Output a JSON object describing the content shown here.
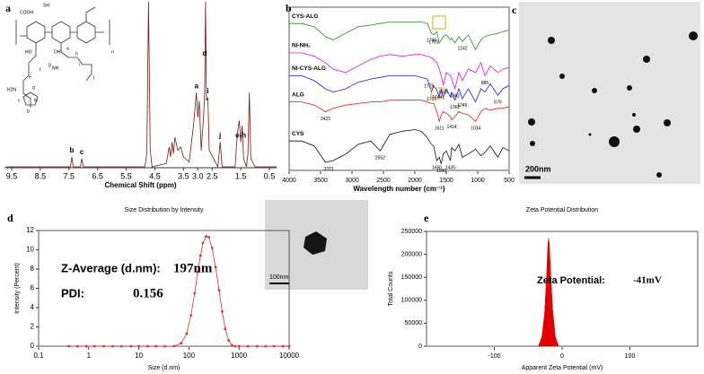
{
  "panel_labels": [
    "a",
    "b",
    "c",
    "d",
    "e"
  ],
  "tem_image": {
    "scale_label": "200nm"
  },
  "inset_image": {
    "scale_label": "100nm"
  },
  "chart_data": [
    {
      "type": "line",
      "x_label": "Chemical Shift (ppm)",
      "color": "#7a1414",
      "x": [
        9.7,
        7.45,
        7.4,
        7.35,
        7.1,
        7.05,
        7.0,
        4.85,
        4.78,
        4.72,
        4.66,
        4.6,
        4.1,
        4.0,
        3.95,
        3.9,
        3.85,
        3.8,
        3.7,
        3.6,
        3.5,
        3.3,
        3.15,
        3.1,
        3.05,
        3.0,
        2.95,
        2.88,
        2.8,
        2.76,
        2.73,
        2.7,
        2.65,
        2.6,
        2.3,
        2.22,
        2.15,
        1.7,
        1.62,
        1.55,
        1.5,
        1.45,
        1.4,
        1.3,
        1.25,
        1.2,
        1.15,
        1.0,
        0.25
      ],
      "values": [
        0,
        0,
        6,
        0,
        0,
        5,
        0,
        0,
        8,
        100,
        10,
        0,
        2,
        12,
        6,
        15,
        8,
        18,
        10,
        12,
        6,
        3,
        25,
        35,
        45,
        30,
        40,
        10,
        30,
        45,
        100,
        40,
        42,
        10,
        0,
        15,
        0,
        0,
        20,
        28,
        15,
        25,
        5,
        0,
        8,
        45,
        5,
        0,
        0
      ],
      "xlim": [
        9.75,
        0.25
      ],
      "ylim": [
        0,
        100
      ],
      "xticks": [
        9.5,
        8.5,
        7.5,
        6.5,
        5.5,
        4.5,
        3.5,
        {
          "value": 3,
          "label": "3.0"
        },
        2.5,
        1.5,
        0.5
      ],
      "annotations": [
        {
          "text": "b",
          "x": 7.4
        },
        {
          "text": "c",
          "x": 7.05
        },
        {
          "text": "a",
          "x": 3.05
        },
        {
          "text": "d",
          "x": 2.76
        },
        {
          "text": "i",
          "x": 2.65
        },
        {
          "text": "j",
          "x": 2.22
        },
        {
          "text": "e-h",
          "x": 1.5
        }
      ],
      "structure_labels": [
        "COOH",
        "OH",
        "HO",
        "NH",
        "SH",
        "n",
        "H2N",
        "N",
        "a",
        "b",
        "c",
        "d",
        "e",
        "f",
        "g",
        "h",
        "i",
        "j"
      ]
    },
    {
      "type": "line",
      "x_label": "Wavelength number (cm⁻¹)",
      "x": [
        4000,
        3800,
        3600,
        3423,
        3300,
        3100,
        2900,
        2700,
        2552,
        2400,
        2200,
        2000,
        1900,
        1800,
        1735,
        1701,
        1650,
        1611,
        1580,
        1549,
        1500,
        1435,
        1414,
        1362,
        1300,
        1245,
        1150,
        1034,
        950,
        885,
        800,
        679,
        600,
        500
      ],
      "series": [
        {
          "name": "CYS-ALG",
          "color": "#2e8b1e",
          "values": [
            90,
            90,
            88,
            82,
            80,
            84,
            88,
            89,
            90,
            91,
            91,
            91,
            91,
            90,
            84,
            83,
            85,
            78,
            80,
            82,
            83,
            80,
            81,
            78,
            82,
            79,
            83,
            74,
            80,
            82,
            83,
            84,
            85,
            86
          ]
        },
        {
          "name": "NI-NH₂",
          "color": "#e010e0",
          "values": [
            72,
            72,
            70,
            66,
            62,
            60,
            64,
            68,
            70,
            71,
            70,
            71,
            71,
            70,
            69,
            68,
            66,
            62,
            58,
            52,
            60,
            58,
            56,
            50,
            60,
            55,
            62,
            60,
            66,
            58,
            64,
            60,
            62,
            63
          ]
        },
        {
          "name": "NI-CYS-ALG",
          "color": "#1c1ce0",
          "values": [
            58,
            58,
            55,
            50,
            48,
            50,
            54,
            56,
            57,
            58,
            58,
            58,
            57,
            56,
            48,
            52,
            49,
            45,
            50,
            44,
            50,
            45,
            48,
            43,
            50,
            44,
            50,
            42,
            50,
            48,
            53,
            46,
            50,
            52
          ]
        },
        {
          "name": "ALG",
          "color": "#e01c1c",
          "values": [
            42,
            42,
            40,
            36,
            38,
            40,
            41,
            42,
            42,
            43,
            43,
            43,
            43,
            42,
            41,
            41,
            36,
            30,
            34,
            36,
            35,
            33,
            31,
            33,
            36,
            35,
            34,
            30,
            36,
            38,
            37,
            38,
            38,
            39
          ]
        },
        {
          "name": "CYS",
          "color": "#111111",
          "values": [
            18,
            18,
            15,
            5,
            6,
            10,
            16,
            18,
            12,
            22,
            24,
            25,
            24,
            20,
            16,
            15,
            6,
            8,
            4,
            10,
            12,
            6,
            14,
            12,
            16,
            8,
            10,
            13,
            9,
            11,
            15,
            8,
            14,
            12
          ]
        }
      ],
      "xlim": [
        4000,
        500
      ],
      "ylim": [
        0,
        100
      ],
      "xticks": [
        4000,
        3500,
        3000,
        2500,
        2000,
        1500,
        1000,
        500
      ],
      "annotations": [
        {
          "x": 1735,
          "series": 0
        },
        {
          "x": 1701,
          "series": 0
        },
        {
          "x": 1242,
          "series": 0
        },
        {
          "x": 1549,
          "series": 1
        },
        {
          "x": 1362,
          "series": 1
        },
        {
          "x": 885,
          "series": 1
        },
        {
          "x": 1775,
          "series": 2
        },
        {
          "x": 1735,
          "series": 2
        },
        {
          "x": 1644,
          "series": 2
        },
        {
          "x": 1362,
          "series": 2
        },
        {
          "x": 1245,
          "series": 2
        },
        {
          "x": 679,
          "series": 2
        },
        {
          "x": 3423,
          "series": 3
        },
        {
          "x": 1611,
          "series": 3
        },
        {
          "x": 1414,
          "series": 3
        },
        {
          "x": 1034,
          "series": 3
        },
        {
          "x": 3373,
          "series": 4
        },
        {
          "x": 2552,
          "series": 4
        },
        {
          "x": 1650,
          "series": 4
        },
        {
          "x": 1580,
          "series": 4
        },
        {
          "x": 1435,
          "series": 4
        }
      ]
    },
    {
      "type": "line",
      "title": "Size Distribution by Intensity",
      "x_label": "Size (d.nm)",
      "y_label": "Intensity (Percent)",
      "color": "#e03030",
      "markers": true,
      "xscale": "log",
      "x": [
        0.4,
        0.6,
        0.9,
        1.3,
        2,
        3,
        4.5,
        7,
        10,
        15,
        22,
        33,
        50,
        70,
        90,
        110,
        130,
        150,
        170,
        190,
        220,
        250,
        290,
        340,
        400,
        460,
        530,
        620,
        720,
        830,
        1000,
        1500,
        2300,
        3400,
        5000,
        7500,
        10000
      ],
      "values": [
        0,
        0,
        0,
        0,
        0,
        0,
        0,
        0,
        0,
        0,
        0,
        0,
        0,
        0.3,
        1.3,
        3.2,
        5.5,
        7.7,
        9.4,
        10.7,
        11.4,
        11.3,
        10.2,
        8.2,
        5.8,
        3.6,
        1.8,
        0.6,
        0.1,
        0,
        0,
        0,
        0,
        0,
        0,
        0,
        0
      ],
      "xlim": [
        0.1,
        10000
      ],
      "ylim": [
        0,
        12
      ],
      "xticks": [
        0.1,
        1,
        10,
        100,
        1000,
        10000
      ],
      "yticks": [
        0,
        2,
        4,
        6,
        8,
        10,
        12
      ],
      "annotations": [
        {
          "label": "Z-Average (d.nm):",
          "value": "197nm"
        },
        {
          "label": "PDI:",
          "value": "0.156"
        }
      ]
    },
    {
      "type": "area",
      "title": "Zeta Potential Distribution",
      "x_label": "Apparent Zeta Potential (mV)",
      "y_label": "Total Counts",
      "color": "#e00000",
      "x": [
        -35,
        -30,
        -26,
        -23,
        -21,
        -20,
        -19,
        -17,
        -14,
        -10,
        -5
      ],
      "values": [
        0,
        20000,
        70000,
        150000,
        220000,
        235000,
        225000,
        160000,
        80000,
        20000,
        0
      ],
      "xlim": [
        -200,
        200
      ],
      "ylim": [
        0,
        250000
      ],
      "xticks": [
        -100,
        0,
        100
      ],
      "yticks": [
        0,
        50000,
        100000,
        150000,
        200000,
        250000
      ],
      "annotations": [
        {
          "label": "Zeta Potential:",
          "value": "-41mV"
        }
      ]
    }
  ]
}
